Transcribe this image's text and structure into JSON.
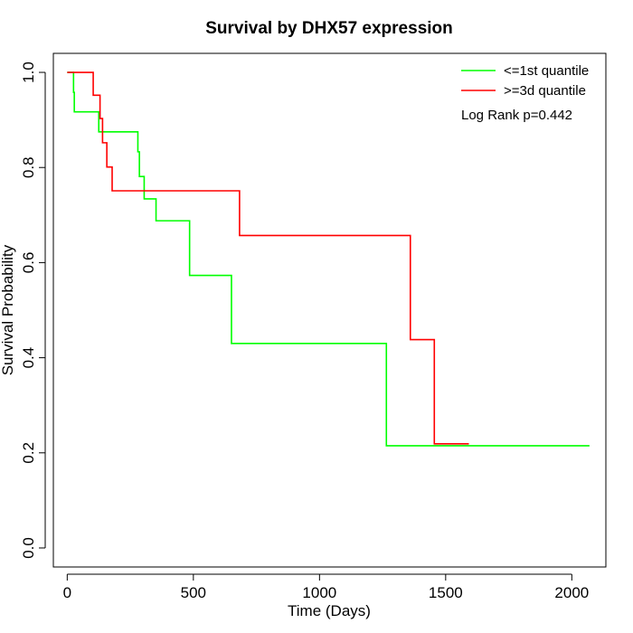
{
  "chart_data": {
    "type": "line",
    "title": "Survival by DHX57 expression",
    "xlabel": "Time (Days)",
    "ylabel": "Survival Probability",
    "xlim": [
      -55,
      2135
    ],
    "ylim": [
      -0.04,
      1.04
    ],
    "x_ticks": [
      0,
      500,
      1000,
      1500,
      2000
    ],
    "x_tick_labels": [
      "0",
      "500",
      "1000",
      "1500",
      "2000"
    ],
    "y_ticks": [
      0.0,
      0.2,
      0.4,
      0.6,
      0.8,
      1.0
    ],
    "y_tick_labels": [
      "0.0",
      "0.2",
      "0.4",
      "0.6",
      "0.8",
      "1.0"
    ],
    "grid": false,
    "legend_position": "top-right",
    "annotation": "Log Rank p=0.442",
    "series": [
      {
        "name": "<=1st quantile",
        "color": "#00ff00",
        "step_points": [
          [
            0,
            1.0
          ],
          [
            25,
            1.0
          ],
          [
            25,
            0.958
          ],
          [
            28,
            0.958
          ],
          [
            28,
            0.917
          ],
          [
            125,
            0.917
          ],
          [
            125,
            0.875
          ],
          [
            280,
            0.875
          ],
          [
            280,
            0.833
          ],
          [
            286,
            0.833
          ],
          [
            286,
            0.781
          ],
          [
            305,
            0.781
          ],
          [
            305,
            0.734
          ],
          [
            352,
            0.734
          ],
          [
            352,
            0.688
          ],
          [
            485,
            0.688
          ],
          [
            485,
            0.573
          ],
          [
            651,
            0.573
          ],
          [
            651,
            0.43
          ],
          [
            1265,
            0.43
          ],
          [
            1265,
            0.215
          ],
          [
            2070,
            0.215
          ]
        ]
      },
      {
        "name": ">=3d quantile",
        "color": "#ff0000",
        "step_points": [
          [
            0,
            1.0
          ],
          [
            103,
            1.0
          ],
          [
            103,
            0.952
          ],
          [
            130,
            0.952
          ],
          [
            130,
            0.903
          ],
          [
            140,
            0.903
          ],
          [
            140,
            0.852
          ],
          [
            157,
            0.852
          ],
          [
            157,
            0.801
          ],
          [
            178,
            0.801
          ],
          [
            178,
            0.751
          ],
          [
            683,
            0.751
          ],
          [
            683,
            0.657
          ],
          [
            1360,
            0.657
          ],
          [
            1360,
            0.438
          ],
          [
            1455,
            0.438
          ],
          [
            1455,
            0.219
          ],
          [
            1592,
            0.219
          ]
        ]
      }
    ]
  }
}
